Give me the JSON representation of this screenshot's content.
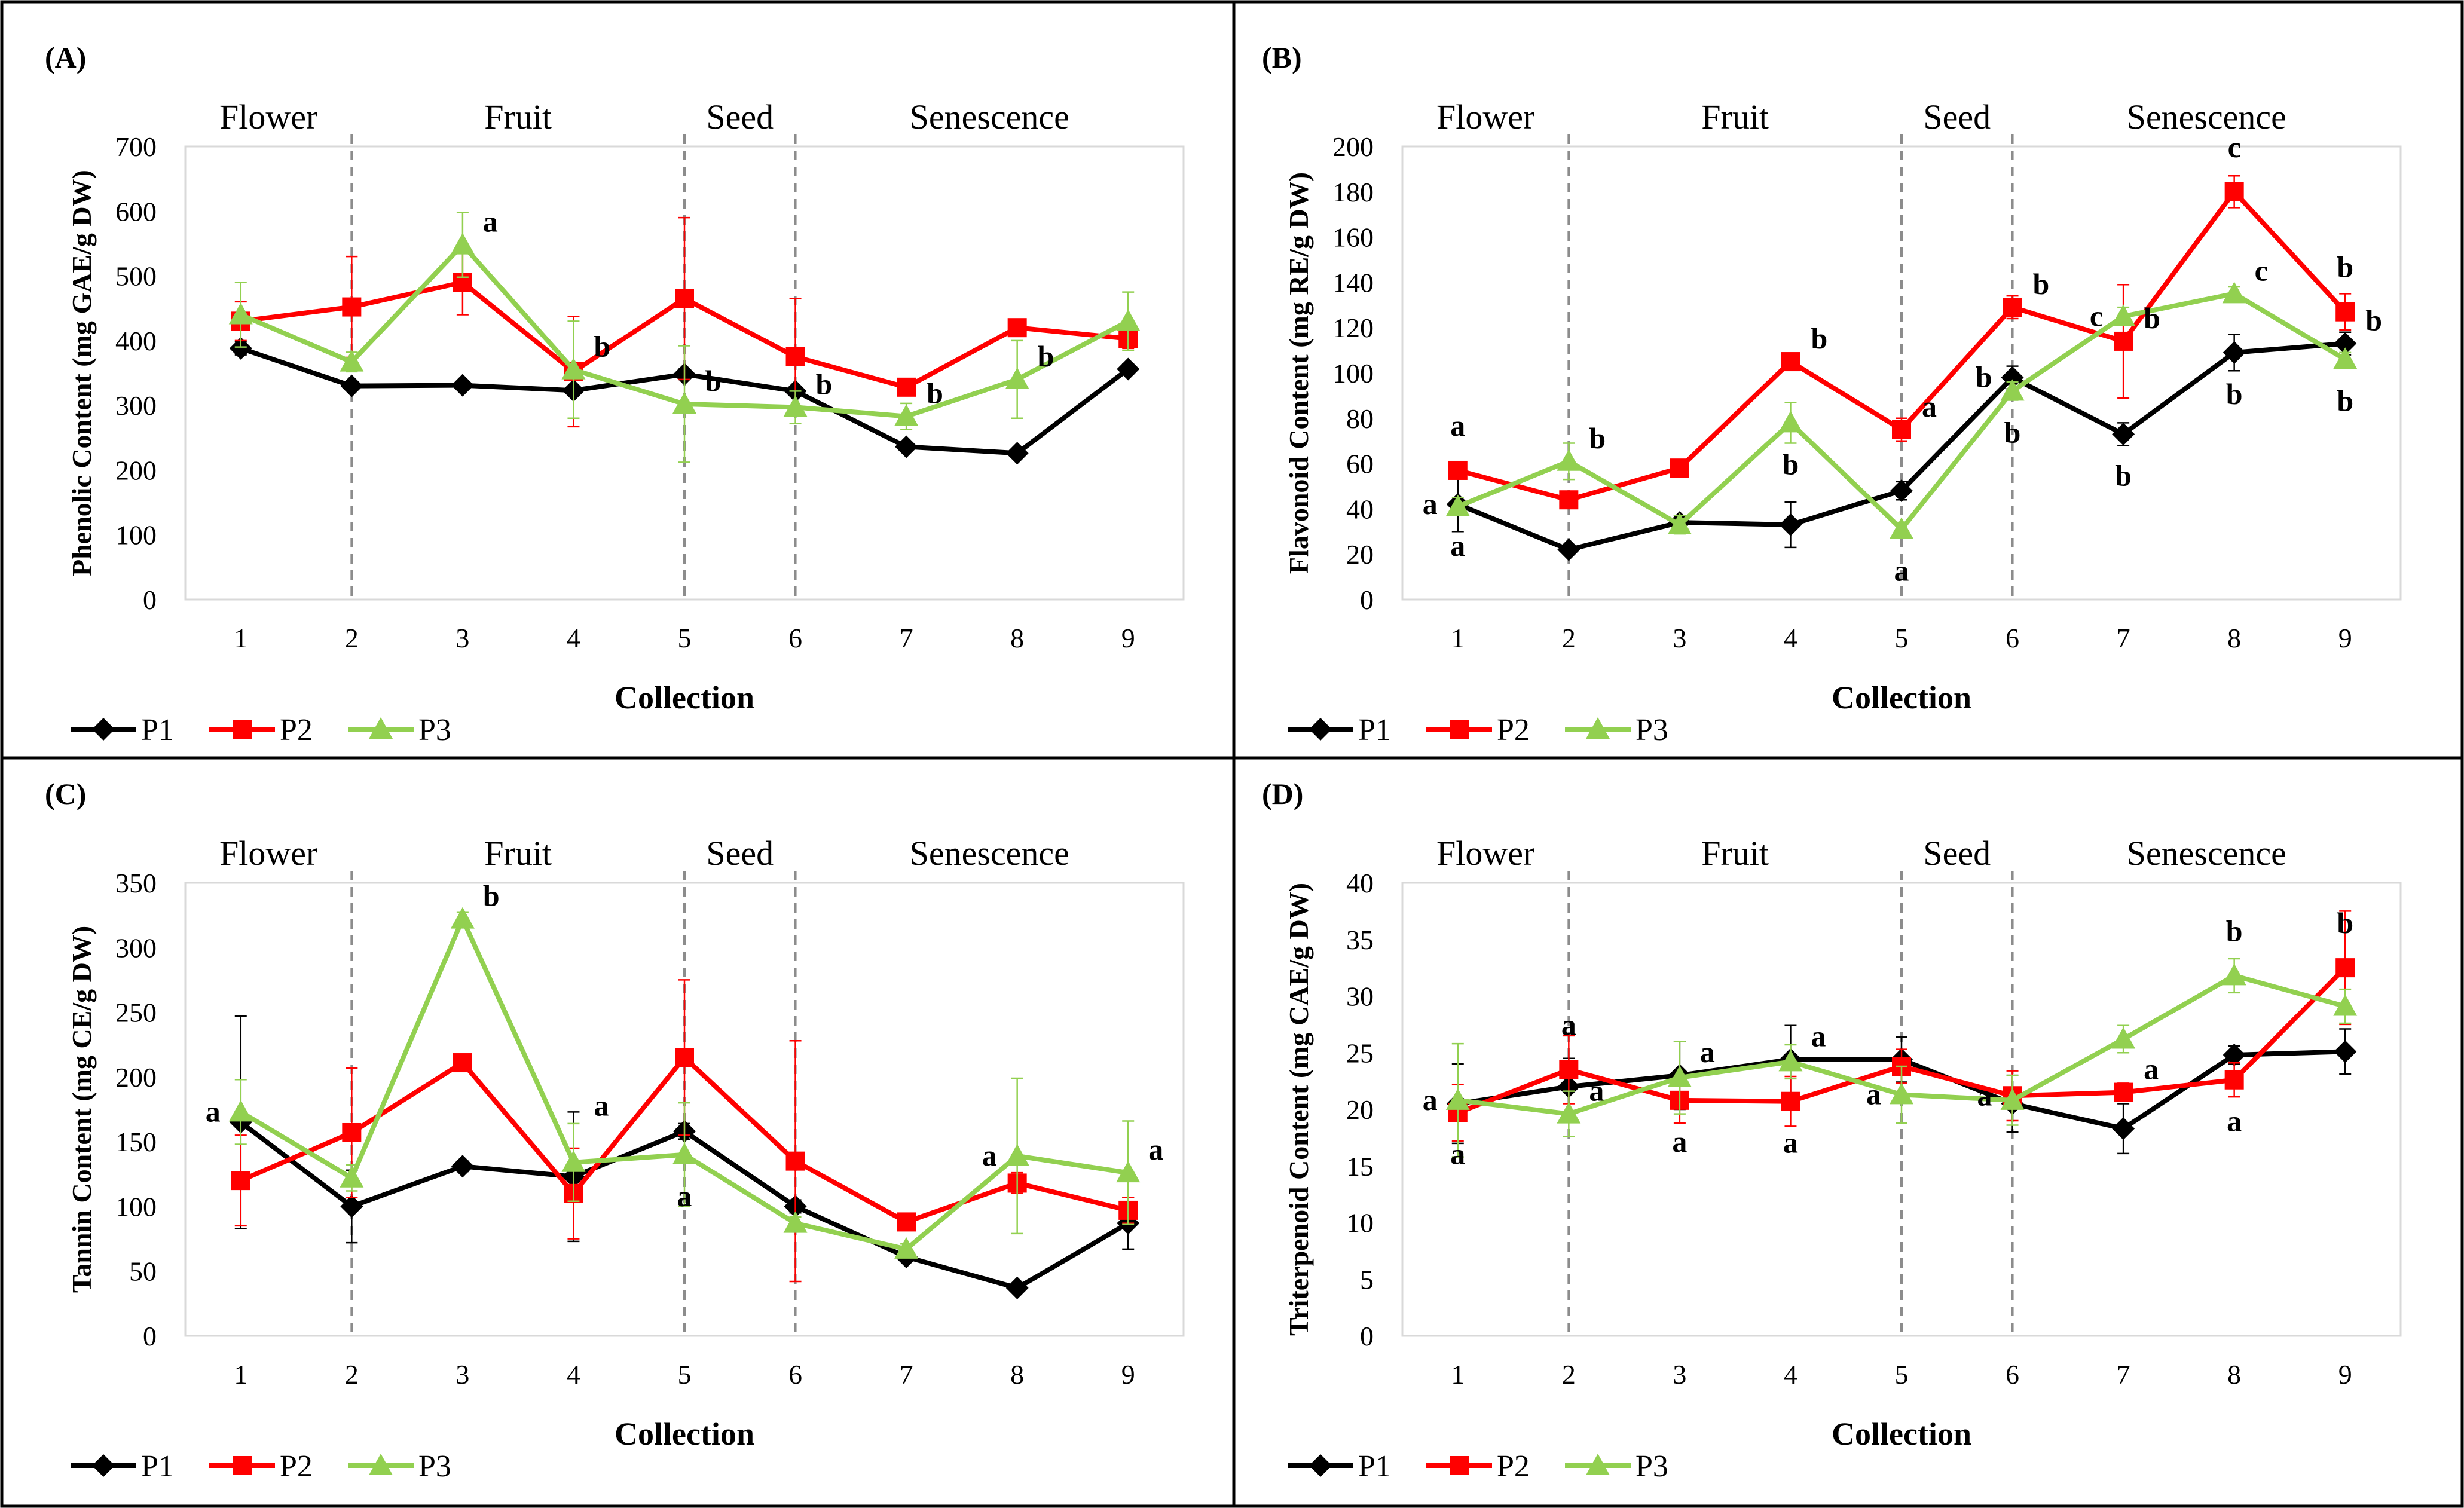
{
  "figure": {
    "background": "#ffffff",
    "border_color": "#000000"
  },
  "series_style": [
    {
      "name": "P1",
      "color": "#000000",
      "marker": "diamond"
    },
    {
      "name": "P2",
      "color": "#ff0000",
      "marker": "square"
    },
    {
      "name": "P3",
      "color": "#92d050",
      "marker": "triangle"
    }
  ],
  "chart_data": [
    {
      "type": "line",
      "panel": "(A)",
      "stages": [
        "Flower",
        "Fruit",
        "Seed",
        "Senescence"
      ],
      "stage_dividers": [
        2,
        5,
        6
      ],
      "x": [
        1,
        2,
        3,
        4,
        5,
        6,
        7,
        8,
        9
      ],
      "xlabel": "Collection",
      "ylabel": "Phenolic Content (mg GAE/g DW)",
      "ylim": [
        0,
        700
      ],
      "yticks": [
        0,
        100,
        200,
        300,
        400,
        500,
        600,
        700
      ],
      "series": [
        {
          "name": "P1",
          "values": [
            388,
            330,
            331,
            323,
            348,
            322,
            236,
            226,
            356
          ],
          "errors": [
            10,
            6,
            6,
            6,
            8,
            6,
            5,
            5,
            8
          ]
        },
        {
          "name": "P2",
          "values": [
            430,
            452,
            490,
            352,
            465,
            375,
            328,
            420,
            403
          ],
          "errors": [
            30,
            78,
            50,
            85,
            125,
            90,
            8,
            12,
            15
          ]
        },
        {
          "name": "P3",
          "values": [
            440,
            367,
            548,
            355,
            302,
            297,
            283,
            340,
            430
          ],
          "errors": [
            50,
            15,
            50,
            75,
            90,
            25,
            20,
            60,
            45
          ]
        }
      ],
      "annotations": [
        {
          "text": "a",
          "x": 3,
          "y": 548
        },
        {
          "text": "b",
          "x": 4,
          "y": 355
        },
        {
          "text": "b",
          "x": 5,
          "y": 302
        },
        {
          "text": "b",
          "x": 6,
          "y": 297
        },
        {
          "text": "b",
          "x": 7,
          "y": 283
        },
        {
          "text": "b",
          "x": 8,
          "y": 340
        }
      ]
    },
    {
      "type": "line",
      "panel": "(B)",
      "stages": [
        "Flower",
        "Fruit",
        "Seed",
        "Senescence"
      ],
      "stage_dividers": [
        2,
        5,
        6
      ],
      "x": [
        1,
        2,
        3,
        4,
        5,
        6,
        7,
        8,
        9
      ],
      "xlabel": "Collection",
      "ylabel": "Flavonoid Content (mg RE/g DW)",
      "ylim": [
        0,
        200
      ],
      "yticks": [
        0,
        20,
        40,
        60,
        80,
        100,
        120,
        140,
        160,
        180,
        200
      ],
      "series": [
        {
          "name": "P1",
          "values": [
            42,
            22,
            34,
            33,
            48,
            98,
            73,
            109,
            113
          ],
          "errors": [
            12,
            2,
            3,
            10,
            4,
            5,
            5,
            8,
            5
          ]
        },
        {
          "name": "P2",
          "values": [
            57,
            44,
            58,
            105,
            75,
            129,
            114,
            180,
            127
          ],
          "errors": [
            3,
            3,
            2,
            3,
            5,
            5,
            25,
            7,
            8
          ]
        },
        {
          "name": "P3",
          "values": [
            41,
            61,
            33,
            78,
            31,
            92,
            125,
            135,
            106
          ],
          "errors": [
            4,
            8,
            4,
            9,
            3,
            4,
            4,
            3,
            3
          ]
        }
      ],
      "annotations": [
        {
          "text": "a",
          "x": 1,
          "y": 57,
          "dy": -1
        },
        {
          "text": "a",
          "x": 1,
          "y": 42,
          "dx": -1
        },
        {
          "text": "a",
          "x": 1,
          "y": 42,
          "dy": 1
        },
        {
          "text": "b",
          "x": 2,
          "y": 61
        },
        {
          "text": "b",
          "x": 4,
          "y": 105
        },
        {
          "text": "b",
          "x": 4,
          "y": 78,
          "dy": 1
        },
        {
          "text": "a",
          "x": 5,
          "y": 75
        },
        {
          "text": "a",
          "x": 5,
          "y": 31,
          "dy": 1
        },
        {
          "text": "b",
          "x": 6,
          "y": 129
        },
        {
          "text": "b",
          "x": 6,
          "y": 98,
          "dx": -1
        },
        {
          "text": "b",
          "x": 6,
          "y": 92,
          "dy": 1
        },
        {
          "text": "c",
          "x": 7,
          "y": 125,
          "dx": -1
        },
        {
          "text": "b",
          "x": 7,
          "y": 114
        },
        {
          "text": "b",
          "x": 7,
          "y": 73,
          "dy": 1
        },
        {
          "text": "c",
          "x": 8,
          "y": 180,
          "dy": -1
        },
        {
          "text": "c",
          "x": 8,
          "y": 135
        },
        {
          "text": "b",
          "x": 8,
          "y": 109,
          "dy": 1
        },
        {
          "text": "b",
          "x": 9,
          "y": 127,
          "dy": -1
        },
        {
          "text": "b",
          "x": 9,
          "y": 113
        },
        {
          "text": "b",
          "x": 9,
          "y": 106,
          "dy": 1
        }
      ]
    },
    {
      "type": "line",
      "panel": "(C)",
      "stages": [
        "Flower",
        "Fruit",
        "Seed",
        "Senescence"
      ],
      "stage_dividers": [
        2,
        5,
        6
      ],
      "x": [
        1,
        2,
        3,
        4,
        5,
        6,
        7,
        8,
        9
      ],
      "xlabel": "Collection",
      "ylabel": "Tannin Content (mg CE/g DW)",
      "ylim": [
        0,
        350
      ],
      "yticks": [
        0,
        50,
        100,
        150,
        200,
        250,
        300,
        350
      ],
      "series": [
        {
          "name": "P1",
          "values": [
            165,
            100,
            131,
            123,
            158,
            100,
            61,
            37,
            87
          ],
          "errors": [
            82,
            28,
            4,
            50,
            6,
            5,
            3,
            3,
            20
          ]
        },
        {
          "name": "P2",
          "values": [
            120,
            157,
            211,
            110,
            215,
            135,
            88,
            118,
            97
          ],
          "errors": [
            35,
            50,
            5,
            35,
            60,
            93,
            4,
            8,
            10
          ]
        },
        {
          "name": "P3",
          "values": [
            173,
            122,
            322,
            134,
            140,
            87,
            67,
            139,
            126
          ],
          "errors": [
            25,
            10,
            5,
            30,
            40,
            5,
            4,
            60,
            40
          ]
        }
      ],
      "annotations": [
        {
          "text": "a",
          "x": 1,
          "y": 173,
          "dx": -1
        },
        {
          "text": "b",
          "x": 3,
          "y": 322
        },
        {
          "text": "a",
          "x": 4,
          "y": 160
        },
        {
          "text": "a",
          "x": 5,
          "y": 140,
          "dy": 1
        },
        {
          "text": "a",
          "x": 8,
          "y": 139,
          "dx": -1
        },
        {
          "text": "a",
          "x": 9,
          "y": 126
        }
      ]
    },
    {
      "type": "line",
      "panel": "(D)",
      "stages": [
        "Flower",
        "Fruit",
        "Seed",
        "Senescence"
      ],
      "stage_dividers": [
        2,
        5,
        6
      ],
      "x": [
        1,
        2,
        3,
        4,
        5,
        6,
        7,
        8,
        9
      ],
      "xlabel": "Collection",
      "ylabel": "Triterpenoid Content (mg CAE/g DW)",
      "ylim": [
        0,
        40
      ],
      "yticks": [
        0,
        5,
        10,
        15,
        20,
        25,
        30,
        35,
        40
      ],
      "series": [
        {
          "name": "P1",
          "values": [
            20.5,
            22,
            23,
            24.4,
            24.4,
            20.5,
            18.3,
            24.8,
            25.1
          ],
          "errors": [
            3.5,
            2.5,
            3,
            3,
            2,
            2.5,
            2.2,
            0.8,
            2
          ]
        },
        {
          "name": "P2",
          "values": [
            19.7,
            23.5,
            20.8,
            20.7,
            23.8,
            21.2,
            21.5,
            22.6,
            32.5
          ],
          "errors": [
            2.5,
            3,
            2,
            2.2,
            1.5,
            2.2,
            0.8,
            1.5,
            5
          ]
        },
        {
          "name": "P3",
          "values": [
            20.8,
            19.6,
            22.8,
            24.2,
            21.3,
            20.8,
            26.2,
            31.8,
            29.1
          ],
          "errors": [
            5,
            2,
            3.2,
            1.5,
            2.5,
            2.2,
            1.2,
            1.5,
            1.5
          ]
        }
      ],
      "annotations": [
        {
          "text": "a",
          "x": 1,
          "y": 20.8,
          "dx": -1
        },
        {
          "text": "a",
          "x": 1,
          "y": 19.7,
          "dy": 1
        },
        {
          "text": "a",
          "x": 2,
          "y": 23.5,
          "dy": -1
        },
        {
          "text": "a",
          "x": 2,
          "y": 19.6
        },
        {
          "text": "a",
          "x": 3,
          "y": 23
        },
        {
          "text": "a",
          "x": 3,
          "y": 20.8,
          "dy": 1
        },
        {
          "text": "a",
          "x": 4,
          "y": 24.4
        },
        {
          "text": "a",
          "x": 4,
          "y": 20.7,
          "dy": 1
        },
        {
          "text": "a",
          "x": 5,
          "y": 21.3,
          "dx": -1
        },
        {
          "text": "a",
          "x": 6,
          "y": 21.2,
          "dx": -1
        },
        {
          "text": "a",
          "x": 7,
          "y": 21.5
        },
        {
          "text": "b",
          "x": 8,
          "y": 31.8,
          "dy": -1
        },
        {
          "text": "a",
          "x": 8,
          "y": 22.6,
          "dy": 1
        },
        {
          "text": "b",
          "x": 9,
          "y": 32.5,
          "dy": -1
        }
      ]
    }
  ]
}
